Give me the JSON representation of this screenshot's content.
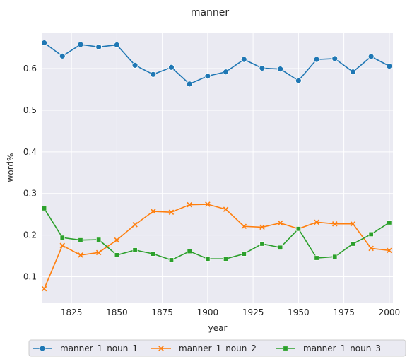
{
  "chart_data": {
    "type": "line",
    "title": "manner",
    "xlabel": "year",
    "ylabel": "word%",
    "xlim": [
      1809,
      2002
    ],
    "ylim": [
      0.038,
      0.685
    ],
    "x_ticks": [
      1825,
      1850,
      1875,
      1900,
      1925,
      1950,
      1975,
      2000
    ],
    "y_ticks": [
      0.1,
      0.2,
      0.3,
      0.4,
      0.5,
      0.6
    ],
    "grid": true,
    "legend_position": "bottom-center",
    "x": [
      1810,
      1820,
      1830,
      1840,
      1850,
      1860,
      1870,
      1880,
      1890,
      1900,
      1910,
      1920,
      1930,
      1940,
      1950,
      1960,
      1970,
      1980,
      1990,
      2000
    ],
    "series": [
      {
        "name": "manner_1_noun_1",
        "color": "#1f77b4",
        "marker": "circle",
        "values": [
          0.662,
          0.63,
          0.658,
          0.652,
          0.657,
          0.608,
          0.586,
          0.603,
          0.563,
          0.582,
          0.592,
          0.622,
          0.601,
          0.599,
          0.571,
          0.622,
          0.624,
          0.592,
          0.629,
          0.606
        ]
      },
      {
        "name": "manner_1_noun_2",
        "color": "#ff7f0e",
        "marker": "x",
        "values": [
          0.071,
          0.175,
          0.152,
          0.158,
          0.188,
          0.225,
          0.257,
          0.255,
          0.273,
          0.274,
          0.262,
          0.221,
          0.219,
          0.229,
          0.215,
          0.231,
          0.227,
          0.227,
          0.168,
          0.163
        ]
      },
      {
        "name": "manner_1_noun_3",
        "color": "#2ca02c",
        "marker": "square",
        "values": [
          0.264,
          0.194,
          0.188,
          0.189,
          0.152,
          0.164,
          0.155,
          0.14,
          0.161,
          0.143,
          0.143,
          0.155,
          0.179,
          0.17,
          0.215,
          0.145,
          0.148,
          0.179,
          0.202,
          0.23
        ]
      }
    ]
  }
}
